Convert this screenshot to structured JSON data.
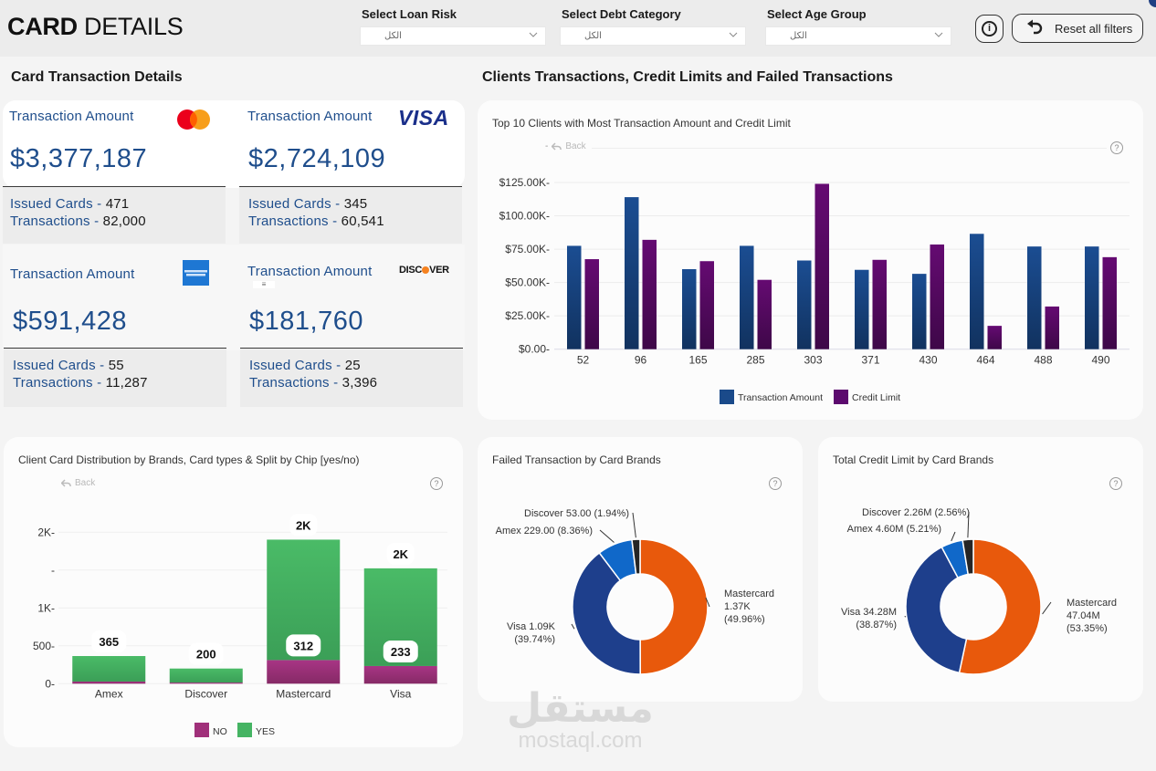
{
  "header": {
    "title_bold": "CARD",
    "title_light": "DETAILS",
    "filters": [
      {
        "label": "Select Loan Risk",
        "value": "الكل"
      },
      {
        "label": "Select Debt Category",
        "value": "الكل"
      },
      {
        "label": "Select Age Group",
        "value": "الكل"
      }
    ],
    "info_icon": "i",
    "reset_label": "Reset all filters"
  },
  "left_section": {
    "title": "Card Transaction Details",
    "cards": [
      {
        "brand": "Mastercard",
        "logo": "mastercard-logo",
        "label": "Transaction Amount",
        "amount": "$3,377,187",
        "issued_label": "Issued Cards - ",
        "issued": "471",
        "tx_label": "Transactions - ",
        "transactions": "82,000"
      },
      {
        "brand": "Visa",
        "logo": "visa-logo",
        "logo_text": "VISA",
        "label": "Transaction Amount",
        "amount": "$2,724,109",
        "issued_label": "Issued Cards - ",
        "issued": "345",
        "tx_label": "Transactions - ",
        "transactions": "60,541"
      },
      {
        "brand": "Amex",
        "logo": "amex-logo",
        "label": "Transaction Amount",
        "amount": "$591,428",
        "issued_label": "Issued Cards - ",
        "issued": "55",
        "tx_label": "Transactions - ",
        "transactions": "11,287"
      },
      {
        "brand": "Discover",
        "logo": "discover-logo",
        "logo_text_a": "DISC",
        "logo_text_b": "VER",
        "label": "Transaction Amount",
        "amount": "$181,760",
        "issued_label": "Issued Cards - ",
        "issued": "25",
        "tx_label": "Transactions - ",
        "transactions": "3,396"
      }
    ]
  },
  "right_section": {
    "title": "Clients Transactions, Credit Limits and Failed Transactions"
  },
  "common": {
    "back_label": "Back",
    "help_glyph": "?"
  },
  "colors": {
    "transaction_amount": "#1a4a8a",
    "credit_limit": "#5c0a6e",
    "chip_no": "#a0307a",
    "chip_yes": "#45b463",
    "mastercard": "#e8590c",
    "visa": "#1e3f8c",
    "amex": "#1068c9",
    "discover": "#252525",
    "kpi_text": "#1f4e8c"
  },
  "chart_data": [
    {
      "id": "top-clients",
      "type": "bar",
      "title": "Top 10 Clients with Most Transaction Amount and Credit Limit",
      "xlabel": "",
      "ylabel": "",
      "categories": [
        "52",
        "96",
        "165",
        "285",
        "303",
        "371",
        "430",
        "464",
        "488",
        "490"
      ],
      "series": [
        {
          "name": "Transaction Amount",
          "values": [
            77.5,
            114,
            60,
            77.5,
            66.5,
            59.5,
            56.5,
            86.5,
            77,
            77
          ]
        },
        {
          "name": "Credit Limit",
          "values": [
            67.5,
            82,
            66,
            52,
            124,
            67,
            78.5,
            17.5,
            32,
            69
          ]
        }
      ],
      "units": "thousands USD",
      "ylim": [
        0,
        125
      ],
      "yticks": [
        0,
        25,
        50,
        75,
        100,
        125
      ],
      "ytick_labels": [
        "$0.00",
        "$25.00K",
        "$50.00K",
        "$75.00K",
        "$100.00K",
        "$125.00K"
      ],
      "grid": true,
      "legend": "bottom-center"
    },
    {
      "id": "card-distribution",
      "type": "bar",
      "stacked": true,
      "title": "Client Card Distribution by Brands, Card types & Split by Chip [yes/no)",
      "categories": [
        "Amex",
        "Discover",
        "Mastercard",
        "Visa"
      ],
      "series": [
        {
          "name": "NO",
          "values": [
            28,
            15,
            312,
            233
          ]
        },
        {
          "name": "YES",
          "values": [
            337,
            185,
            1590,
            1290
          ]
        }
      ],
      "data_labels": [
        {
          "category": "Amex",
          "text": "365",
          "anchor": "total"
        },
        {
          "category": "Discover",
          "text": "200",
          "anchor": "total"
        },
        {
          "category": "Mastercard",
          "text": "312",
          "anchor": "no"
        },
        {
          "category": "Mastercard",
          "text": "2K",
          "anchor": "total"
        },
        {
          "category": "Visa",
          "text": "233",
          "anchor": "no"
        },
        {
          "category": "Visa",
          "text": "2K",
          "anchor": "total"
        }
      ],
      "ylim": [
        0,
        2000
      ],
      "yticks": [
        0,
        500,
        1000,
        1500,
        2000
      ],
      "ytick_labels": [
        "0",
        "500",
        "1K",
        "",
        "2K"
      ],
      "grid": true,
      "legend": "bottom-center"
    },
    {
      "id": "failed-transactions",
      "type": "pie",
      "donut": true,
      "title": "Failed Transaction by Card Brands",
      "slices": [
        {
          "name": "Mastercard",
          "value": 1370,
          "percent": 49.96,
          "label_lines": [
            "Mastercard",
            "1.37K",
            "(49.96%)"
          ]
        },
        {
          "name": "Visa",
          "value": 1090,
          "percent": 39.74,
          "label_lines": [
            "Visa 1.09K",
            "(39.74%)"
          ]
        },
        {
          "name": "Amex",
          "value": 229,
          "percent": 8.36,
          "label_lines": [
            "Amex 229.00 (8.36%)"
          ]
        },
        {
          "name": "Discover",
          "value": 53,
          "percent": 1.94,
          "label_lines": [
            "Discover 53.00 (1.94%)"
          ]
        }
      ]
    },
    {
      "id": "credit-limit",
      "type": "pie",
      "donut": true,
      "title": "Total Credit Limit by Card Brands",
      "slices": [
        {
          "name": "Mastercard",
          "value": 47.04,
          "percent": 53.35,
          "label_lines": [
            "Mastercard",
            "47.04M",
            "(53.35%)"
          ]
        },
        {
          "name": "Visa",
          "value": 34.28,
          "percent": 38.87,
          "label_lines": [
            "Visa 34.28M",
            "(38.87%)"
          ]
        },
        {
          "name": "Amex",
          "value": 4.6,
          "percent": 5.21,
          "label_lines": [
            "Amex 4.60M (5.21%)"
          ]
        },
        {
          "name": "Discover",
          "value": 2.26,
          "percent": 2.56,
          "label_lines": [
            "Discover 2.26M (2.56%)"
          ]
        }
      ]
    }
  ],
  "watermark": {
    "arabic": "مستقل",
    "latin": "mostaql.com"
  }
}
